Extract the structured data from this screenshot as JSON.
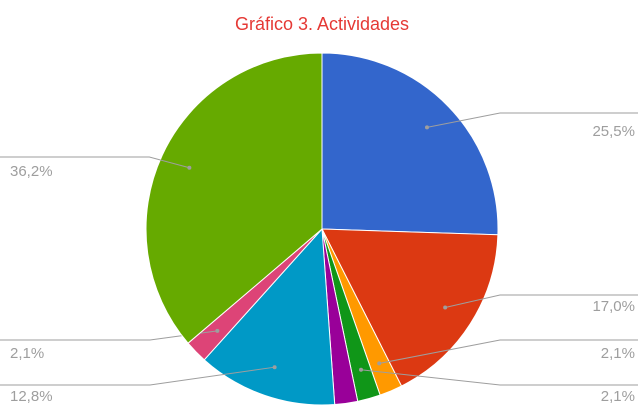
{
  "chart_data": {
    "type": "pie",
    "title": "Gráfico 3. Actividades",
    "values": [
      25.5,
      17.0,
      2.1,
      2.1,
      2.1,
      12.8,
      2.1,
      36.2
    ],
    "value_labels": [
      "25,5%",
      "17,0%",
      "2,1%",
      "2,1%",
      null,
      "12,8%",
      "2,1%",
      "36,2%"
    ],
    "colors": [
      "#3366cc",
      "#dc3912",
      "#ff9900",
      "#109618",
      "#990099",
      "#0099c6",
      "#dd4477",
      "#66aa00"
    ]
  }
}
